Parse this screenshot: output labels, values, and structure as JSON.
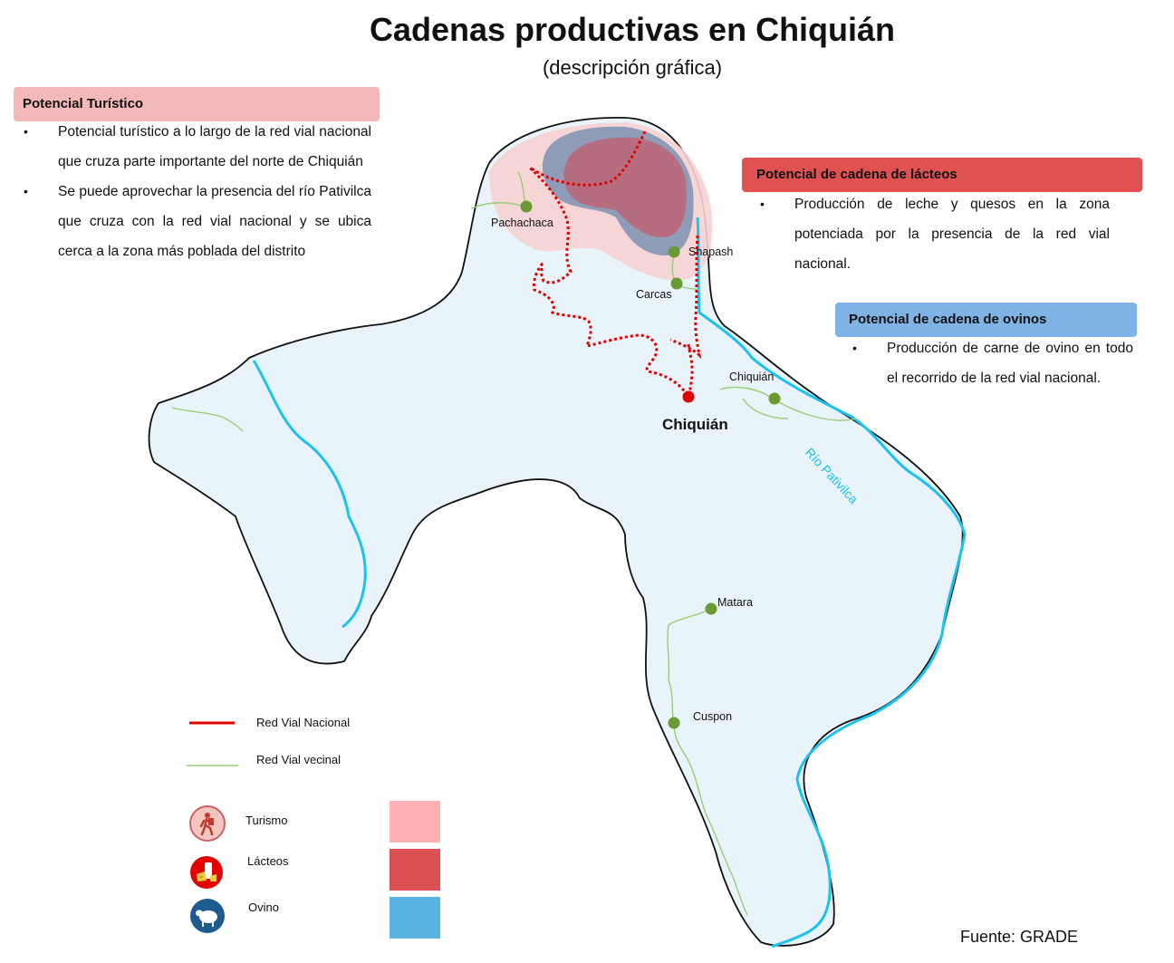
{
  "title": "Cadenas productivas en Chiquián",
  "subtitle": "(descripción gráfica)",
  "panels": {
    "turismo": {
      "heading": "Potencial Turístico",
      "bullets": [
        "Potencial turístico a lo largo de la red vial nacional que cruza parte importante del norte de Chiquián",
        "Se puede aprovechar la presencia del río Pativilca que cruza con la red vial nacional y se ubica cerca a la zona más poblada del distrito"
      ]
    },
    "lacteos": {
      "heading": "Potencial de cadena de lácteos",
      "bullets": [
        "Producción de leche y quesos en la zona potenciada por la presencia de la red vial nacional."
      ]
    },
    "ovinos": {
      "heading": "Potencial de cadena de ovinos",
      "bullets": [
        "Producción de carne de ovino en todo el recorrido de la red vial nacional."
      ]
    }
  },
  "places": {
    "pachachaca": "Pachachaca",
    "shapash": "Shapash",
    "carcas": "Carcas",
    "chiquian_small": "Chiquián",
    "chiquian_main": "Chiquián",
    "matara": "Matara",
    "cuspon": "Cuspon",
    "river": "Río Pativilca"
  },
  "legend": {
    "red_nacional": "Red Vial Nacional",
    "red_vecinal": "Red Vial vecinal",
    "turismo": "Turismo",
    "lacteos": "Lácteos",
    "ovino": "Ovino"
  },
  "source": "Fuente: GRADE",
  "colors": {
    "turismo_panel": "#f4b8b8",
    "lacteos_panel": "#e05252",
    "ovinos_panel": "#7fb2e5",
    "district_fill": "#e9f4fa",
    "river": "#1ac3ef",
    "red_nacional": "#e00000",
    "red_vecinal": "#9ccc78",
    "town": "#6a9a34",
    "capital": "#e00000",
    "turismo_zone": "#f7d2d2",
    "lacteos_zone": "#b86a7c",
    "ovino_zone": "#7b92b3",
    "turismo_swatch": "#ffb1b6",
    "lacteos_swatch": "#dd5052",
    "ovino_swatch": "#5ab4e2"
  },
  "icons": {
    "turismo": "hiker-icon",
    "lacteos": "milk-cheese-icon",
    "ovino": "sheep-icon"
  }
}
